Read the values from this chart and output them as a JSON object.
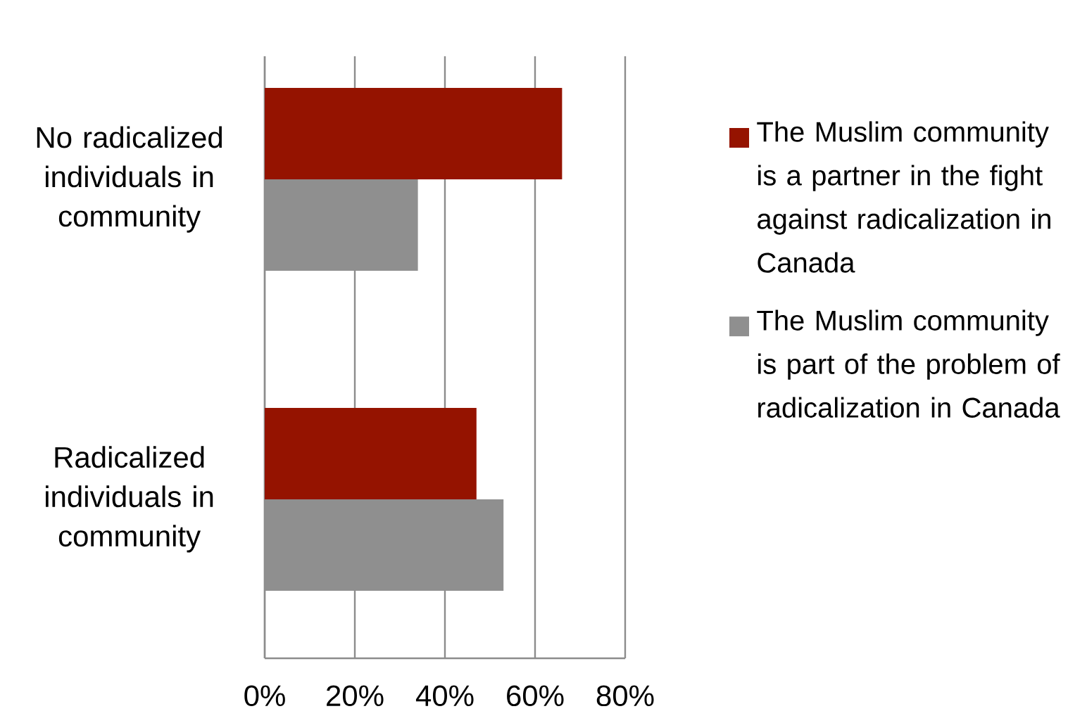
{
  "chart_data": {
    "type": "bar",
    "orientation": "horizontal",
    "categories": [
      "No radicalized individuals in community",
      "Radicalized individuals in community"
    ],
    "series": [
      {
        "name": "The Muslim community is a partner in the fight against radicalization in Canada",
        "color": "#951300",
        "values": [
          66,
          47
        ]
      },
      {
        "name": "The Muslim community is part of the problem of radicalization in Canada",
        "color": "#8f8f8f",
        "values": [
          34,
          53
        ]
      }
    ],
    "xlim": [
      0,
      80
    ],
    "xticks": [
      {
        "value": 0,
        "label": "0%"
      },
      {
        "value": 20,
        "label": "20%"
      },
      {
        "value": 40,
        "label": "40%"
      },
      {
        "value": 60,
        "label": "60%"
      },
      {
        "value": 80,
        "label": "80%"
      }
    ],
    "grid": "x",
    "legend": "right"
  }
}
